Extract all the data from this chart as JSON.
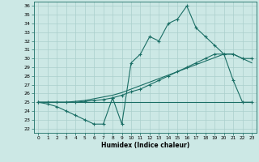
{
  "xlabel": "Humidex (Indice chaleur)",
  "bg_color": "#cce8e5",
  "grid_color": "#aacfcc",
  "line_color": "#1a6e65",
  "xlim": [
    -0.5,
    23.5
  ],
  "ylim": [
    21.5,
    36.5
  ],
  "yticks": [
    22,
    23,
    24,
    25,
    26,
    27,
    28,
    29,
    30,
    31,
    32,
    33,
    34,
    35,
    36
  ],
  "xticks": [
    0,
    1,
    2,
    3,
    4,
    5,
    6,
    7,
    8,
    9,
    10,
    11,
    12,
    13,
    14,
    15,
    16,
    17,
    18,
    19,
    20,
    21,
    22,
    23
  ],
  "line1_x": [
    0,
    1,
    2,
    3,
    4,
    5,
    6,
    7,
    8,
    9,
    10,
    11,
    12,
    13,
    14,
    15,
    16,
    17,
    18,
    19,
    20,
    21,
    22,
    23
  ],
  "line1_y": [
    25,
    24.8,
    24.5,
    24.0,
    23.5,
    23.0,
    22.5,
    22.5,
    25.5,
    22.5,
    29.5,
    30.5,
    32.5,
    32.0,
    34.0,
    34.5,
    36.0,
    33.5,
    32.5,
    31.5,
    30.5,
    27.5,
    25.0,
    25.0
  ],
  "line2_x": [
    0,
    1,
    2,
    3,
    4,
    5,
    6,
    7,
    8,
    9,
    10,
    11,
    12,
    13,
    14,
    15,
    16,
    17,
    18,
    19,
    20,
    21,
    22,
    23
  ],
  "line2_y": [
    25.0,
    25.0,
    25.0,
    25.0,
    25.0,
    25.1,
    25.2,
    25.3,
    25.5,
    25.8,
    26.2,
    26.5,
    27.0,
    27.5,
    28.0,
    28.5,
    29.0,
    29.5,
    30.0,
    30.5,
    30.5,
    30.5,
    30.0,
    30.0
  ],
  "line3_x": [
    0,
    23
  ],
  "line3_y": [
    25.0,
    25.0
  ],
  "line4_x": [
    0,
    1,
    2,
    3,
    4,
    5,
    6,
    7,
    8,
    9,
    10,
    11,
    12,
    13,
    14,
    15,
    16,
    17,
    18,
    19,
    20,
    21,
    22,
    23
  ],
  "line4_y": [
    25.0,
    25.0,
    25.0,
    25.0,
    25.1,
    25.2,
    25.4,
    25.6,
    25.8,
    26.1,
    26.5,
    26.9,
    27.3,
    27.7,
    28.1,
    28.5,
    28.9,
    29.3,
    29.7,
    30.1,
    30.5,
    30.5,
    30.0,
    29.5
  ]
}
